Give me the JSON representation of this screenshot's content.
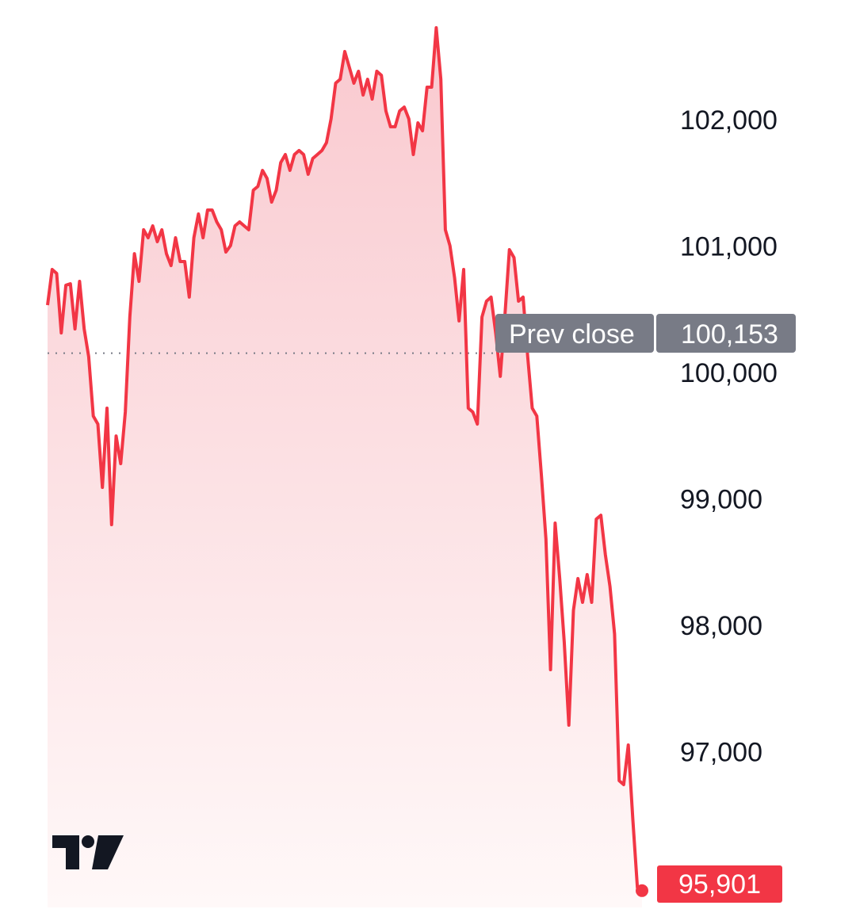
{
  "chart_data": {
    "type": "area",
    "title": "",
    "xlabel": "",
    "ylabel": "",
    "ylim": [
      95800,
      102800
    ],
    "y_ticks": [
      "97,000",
      "98,000",
      "99,000",
      "100,000",
      "101,000",
      "102,000"
    ],
    "y_tick_values": [
      97000,
      98000,
      99000,
      100000,
      101000,
      102000
    ],
    "grid": false,
    "line_color": "#f23645",
    "fill_color": "#f9cdd2",
    "values": [
      100533,
      100815,
      100784,
      100313,
      100690,
      100702,
      100345,
      100721,
      100345,
      100125,
      99655,
      99592,
      99091,
      99718,
      98796,
      99498,
      99279,
      99687,
      100439,
      100940,
      100721,
      101129,
      101066,
      101160,
      101035,
      101129,
      100940,
      100846,
      101066,
      100878,
      100878,
      100596,
      101066,
      101254,
      101066,
      101285,
      101285,
      101191,
      101129,
      100953,
      101003,
      101160,
      101191,
      101160,
      101129,
      101442,
      101473,
      101599,
      101536,
      101348,
      101442,
      101661,
      101724,
      101599,
      101724,
      101756,
      101724,
      101568,
      101693,
      101724,
      101756,
      101818,
      102006,
      102289,
      102320,
      102539,
      102414,
      102289,
      102383,
      102195,
      102320,
      102163,
      102383,
      102351,
      102069,
      101944,
      101944,
      102069,
      102100,
      102006,
      101724,
      101975,
      101912,
      102257,
      102257,
      102727,
      102320,
      101129,
      101003,
      100752,
      100408,
      100815,
      99718,
      99687,
      99592,
      100439,
      100564,
      100596,
      100313,
      99969,
      100439,
      100972,
      100909,
      100564,
      100596,
      100125,
      99718,
      99655,
      99185,
      98683,
      97649,
      98809,
      98370,
      97868,
      97210,
      98119,
      98370,
      98182,
      98401,
      98182,
      98840,
      98871,
      98558,
      98307,
      97931,
      96771,
      96740,
      97053,
      96458,
      95925,
      95901
    ],
    "prev_close": {
      "label": "Prev close",
      "value": 100153,
      "value_label": "100,153",
      "color": "#787b86"
    },
    "last_price": {
      "value": 95901,
      "label": "95,901",
      "color": "#f23645"
    }
  },
  "logo": {
    "text": "TV",
    "name": "tradingview-logo"
  }
}
